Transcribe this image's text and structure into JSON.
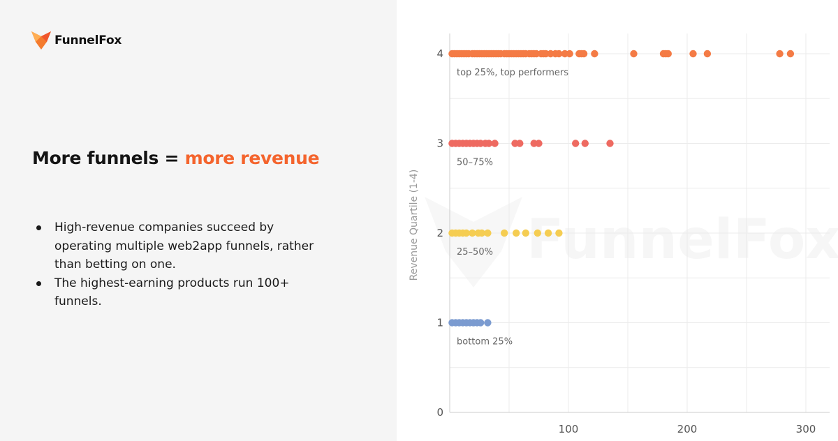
{
  "brand": {
    "name": "FunnelFox",
    "accent_color": "#f4642d",
    "icon": "fox-logo-icon"
  },
  "headline": {
    "main": "More funnels = ",
    "accent": "more revenue"
  },
  "bullets": [
    "High-revenue companies succeed by operating multiple web2app funnels, rather than betting on one.",
    "The highest-earning products run 100+ funnels."
  ],
  "chart_data": {
    "type": "scatter",
    "ylabel": "Revenue Quartile (1-4)",
    "xlabel": "",
    "xlim": [
      0,
      315
    ],
    "ylim": [
      0,
      4
    ],
    "x_ticks": [
      100,
      200,
      300
    ],
    "y_ticks": [
      0,
      1,
      2,
      3,
      4
    ],
    "grid": true,
    "watermark": "FunnelFox",
    "series": [
      {
        "y": 4,
        "color": "#f47b45",
        "label": "top 25%, top performers",
        "x": [
          2,
          4,
          6,
          8,
          10,
          12,
          14,
          16,
          19,
          21,
          23,
          25,
          27,
          29,
          31,
          33,
          35,
          37,
          39,
          41,
          43,
          46,
          48,
          50,
          52,
          54,
          56,
          58,
          60,
          62,
          64,
          67,
          69,
          71,
          73,
          77,
          79,
          81,
          85,
          89,
          92,
          97,
          101,
          109,
          111,
          113,
          122,
          155,
          180,
          182,
          184,
          205,
          217,
          278,
          287
        ]
      },
      {
        "y": 3,
        "color": "#ee6a61",
        "label": "50–75%",
        "x": [
          2,
          5,
          8,
          11,
          14,
          17,
          20,
          23,
          26,
          30,
          33,
          38,
          55,
          59,
          71,
          75,
          106,
          114,
          135
        ]
      },
      {
        "y": 2,
        "color": "#f5cd52",
        "label": "25–50%",
        "x": [
          2,
          5,
          8,
          11,
          14,
          19,
          24,
          27,
          32,
          46,
          56,
          64,
          74,
          83,
          92
        ]
      },
      {
        "y": 1,
        "color": "#7b9bd0",
        "label": "bottom 25%",
        "x": [
          2,
          5,
          8,
          11,
          14,
          17,
          20,
          23,
          26,
          32
        ]
      }
    ]
  }
}
